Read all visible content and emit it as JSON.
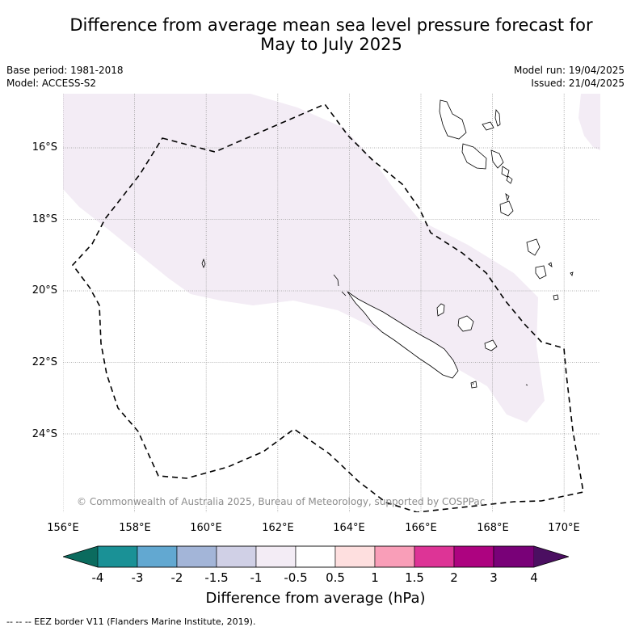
{
  "title_line1": "Difference from average mean sea level pressure forecast for",
  "title_line2": "May to July 2025",
  "base_period": "Base period: 1981-2018",
  "model": "Model: ACCESS-S2",
  "model_run": "Model run: 19/04/2025",
  "issued": "Issued: 21/04/2025",
  "copyright": "© Commonwealth of Australia 2025, Bureau of Meteorology, supported by COSPPac",
  "lat_labels": [
    "16°S",
    "18°S",
    "20°S",
    "22°S",
    "24°S"
  ],
  "lon_labels": [
    "156°E",
    "158°E",
    "160°E",
    "162°E",
    "164°E",
    "166°E",
    "168°E",
    "170°E"
  ],
  "colorbar": {
    "ticks": [
      "-4",
      "-3",
      "-2",
      "-1.5",
      "-1",
      "-0.5",
      "0.5",
      "1",
      "1.5",
      "2",
      "3",
      "4"
    ],
    "colors": [
      "#0b6b5e",
      "#1a9196",
      "#62a8d1",
      "#a3b5d8",
      "#d0d0e6",
      "#f3ecf5",
      "#ffffff",
      "#fedfdf",
      "#f99eb8",
      "#dd3496",
      "#ad0380",
      "#790178",
      "#4b0f61"
    ],
    "label": "Difference from average (hPa)"
  },
  "legend_text": "--  --  -- EEZ border V11 (Flanders Marine Institute, 2019).",
  "shading_color": "#f3ecf5"
}
